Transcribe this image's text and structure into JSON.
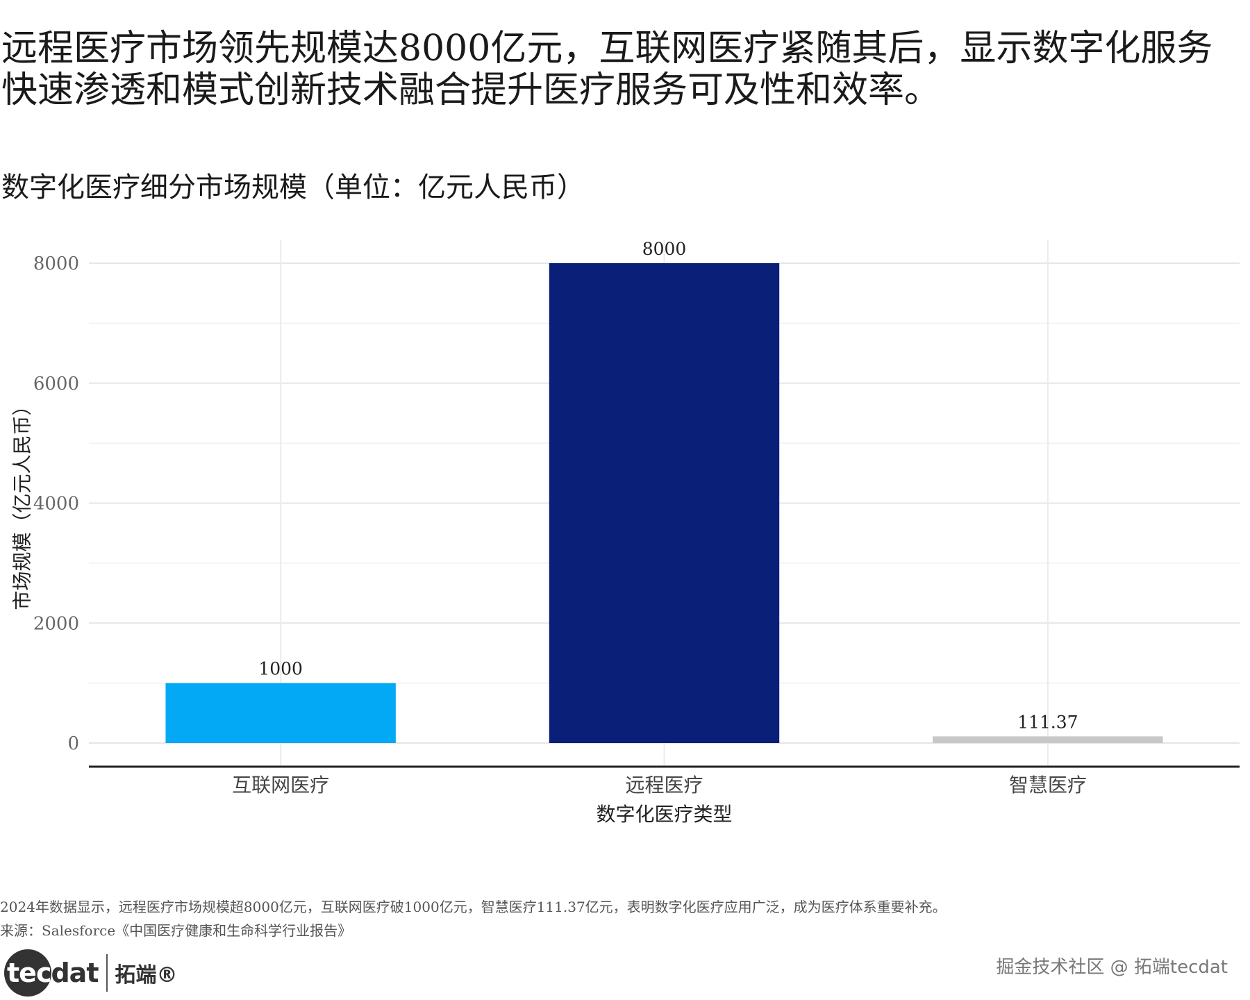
{
  "headline": {
    "line1": "远程医疗市场领先规模达8000亿元，互联网医疗紧随其后，显示数字化服务",
    "line2": "快速渗透和模式创新技术融合提升医疗服务可及性和效率。"
  },
  "chart_data": {
    "type": "bar",
    "title": "数字化医疗细分市场规模（单位：亿元人民币）",
    "xlabel": "数字化医疗类型",
    "ylabel": "市场规模（亿元人民币）",
    "categories": [
      "互联网医疗",
      "远程医疗",
      "智慧医疗"
    ],
    "values": [
      1000,
      8000,
      111.37
    ],
    "value_labels": [
      "1000",
      "8000",
      "111.37"
    ],
    "colors": [
      "#03a9f4",
      "#0a1f78",
      "#c8c8c8"
    ],
    "ylim": [
      0,
      8000
    ],
    "yticks": [
      0,
      2000,
      4000,
      6000,
      8000
    ],
    "ytick_labels": [
      "0",
      "2000",
      "4000",
      "6000",
      "8000"
    ],
    "grid": true,
    "legend": "none"
  },
  "footer": {
    "note": "2024年数据显示，远程医疗市场规模超8000亿元，互联网医疗破1000亿元，智慧医疗111.37亿元，表明数字化医疗应用广泛，成为医疗体系重要补充。",
    "source": "来源：Salesforce《中国医疗健康和生命科学行业报告》",
    "logo_text_a": "tec",
    "logo_text_b": "dat",
    "logo_cn": "拓端®",
    "watermark": "掘金技术社区 @ 拓端tecdat"
  }
}
